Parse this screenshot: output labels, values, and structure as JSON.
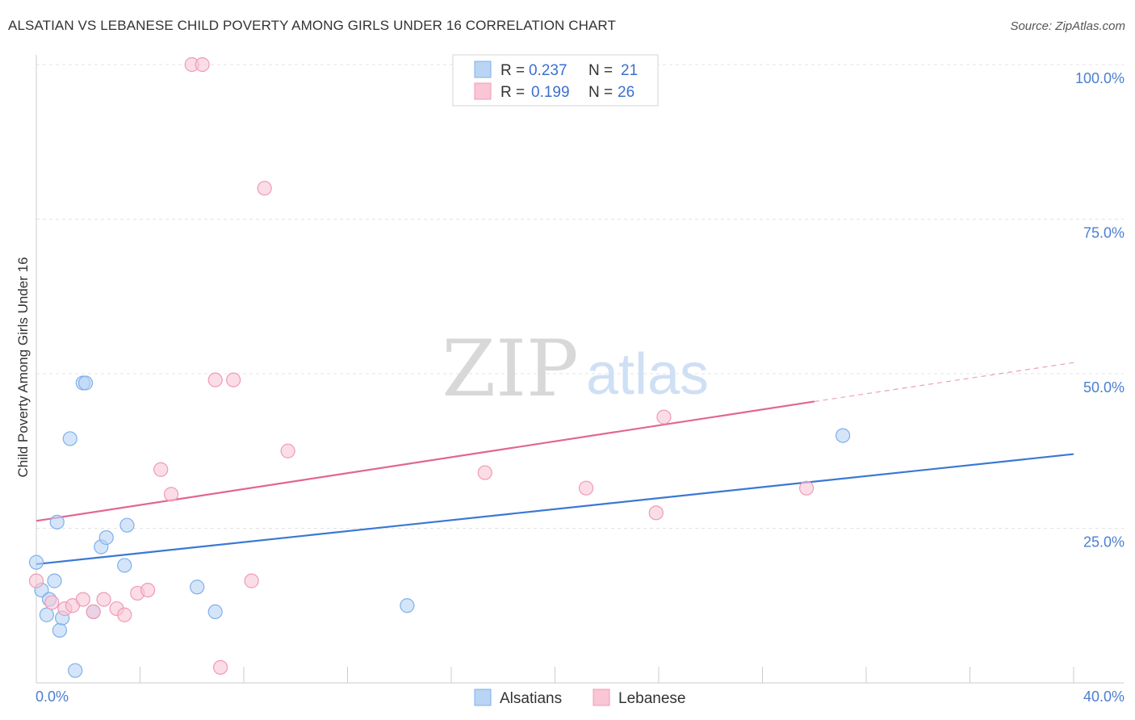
{
  "title": "ALSATIAN VS LEBANESE CHILD POVERTY AMONG GIRLS UNDER 16 CORRELATION CHART",
  "source": "Source: ZipAtlas.com",
  "watermark": {
    "zip": "ZIP",
    "atlas": "atlas"
  },
  "chart_data": {
    "type": "scatter",
    "title": "ALSATIAN VS LEBANESE CHILD POVERTY AMONG GIRLS UNDER 16 CORRELATION CHART",
    "ylabel": "Child Poverty Among Girls Under 16",
    "xlim": [
      0,
      40
    ],
    "ylim": [
      0,
      100
    ],
    "x_ticks": [
      "0.0%",
      "40.0%"
    ],
    "y_ticks": [
      "100.0%",
      "75.0%",
      "50.0%",
      "25.0%"
    ],
    "grid": true,
    "legend_placement": "top-center",
    "series": [
      {
        "name": "Alsatians",
        "color": "#7fb0ea",
        "fill": "#b9d4f5",
        "r": "0.237",
        "n": "21",
        "trend": {
          "x": [
            0,
            40
          ],
          "y": [
            19.2,
            37.0
          ]
        },
        "points": [
          [
            0.0,
            19.5
          ],
          [
            0.2,
            15.0
          ],
          [
            0.4,
            11.0
          ],
          [
            0.5,
            13.5
          ],
          [
            0.7,
            16.5
          ],
          [
            0.8,
            26.0
          ],
          [
            0.9,
            8.5
          ],
          [
            1.0,
            10.5
          ],
          [
            1.3,
            39.5
          ],
          [
            1.5,
            2.0
          ],
          [
            1.8,
            48.5
          ],
          [
            1.9,
            48.5
          ],
          [
            2.2,
            11.5
          ],
          [
            2.5,
            22.0
          ],
          [
            2.7,
            23.5
          ],
          [
            3.4,
            19.0
          ],
          [
            3.5,
            25.5
          ],
          [
            6.2,
            15.5
          ],
          [
            6.9,
            11.5
          ],
          [
            14.3,
            12.5
          ],
          [
            31.1,
            40.0
          ]
        ]
      },
      {
        "name": "Lebanese",
        "color": "#f09ab6",
        "fill": "#f9c6d6",
        "r": "0.199",
        "n": "26",
        "trend": {
          "x": [
            0,
            30
          ],
          "y": [
            26.2,
            45.5
          ]
        },
        "trend_dashed": {
          "x": [
            30,
            40
          ],
          "y": [
            45.5,
            51.8
          ]
        },
        "points": [
          [
            0.0,
            16.5
          ],
          [
            0.6,
            13.0
          ],
          [
            1.1,
            12.0
          ],
          [
            1.4,
            12.5
          ],
          [
            1.8,
            13.5
          ],
          [
            2.2,
            11.5
          ],
          [
            2.6,
            13.5
          ],
          [
            3.1,
            12.0
          ],
          [
            3.4,
            11.0
          ],
          [
            3.9,
            14.5
          ],
          [
            4.3,
            15.0
          ],
          [
            4.8,
            34.5
          ],
          [
            5.2,
            30.5
          ],
          [
            6.0,
            100.0
          ],
          [
            6.4,
            100.0
          ],
          [
            6.9,
            49.0
          ],
          [
            7.1,
            2.5
          ],
          [
            7.6,
            49.0
          ],
          [
            8.3,
            16.5
          ],
          [
            8.8,
            80.0
          ],
          [
            9.7,
            37.5
          ],
          [
            17.3,
            34.0
          ],
          [
            21.2,
            31.5
          ],
          [
            23.9,
            27.5
          ],
          [
            24.2,
            43.0
          ],
          [
            29.7,
            31.5
          ]
        ]
      }
    ]
  },
  "legend": {
    "r_label": "R = ",
    "n_label": "N = ",
    "rows": [
      {
        "r": "0.237",
        "n": "21"
      },
      {
        "r": "0.199",
        "n": "26"
      }
    ]
  },
  "bottom_legend": [
    "Alsatians",
    "Lebanese"
  ]
}
